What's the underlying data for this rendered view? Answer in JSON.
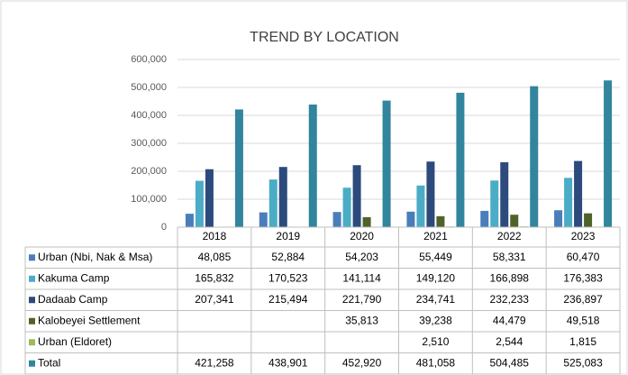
{
  "chart_data": {
    "type": "bar",
    "title": "TREND BY  LOCATION",
    "categories": [
      "2018",
      "2019",
      "2020",
      "2021",
      "2022",
      "2023"
    ],
    "ylim": [
      0,
      600000
    ],
    "yticks": [
      0,
      {
        "value": 100000,
        "label": "100,000"
      },
      {
        "value": 200000,
        "label": "200,000"
      },
      {
        "value": 300000,
        "label": "300,000"
      },
      {
        "value": 400000,
        "label": "400,000"
      },
      {
        "value": 500000,
        "label": "500,000"
      },
      {
        "value": 600000,
        "label": "600,000"
      }
    ],
    "grid": true,
    "series": [
      {
        "name": "Urban (Nbi, Nak & Msa)",
        "color": "#4a7ebb",
        "values": [
          48085,
          52884,
          54203,
          55449,
          58331,
          60470
        ],
        "value_labels": [
          "48,085",
          "52,884",
          "54,203",
          "55,449",
          "58,331",
          "60,470"
        ]
      },
      {
        "name": "Kakuma Camp",
        "color": "#4bacc6",
        "values": [
          165832,
          170523,
          141114,
          149120,
          166898,
          176383
        ],
        "value_labels": [
          "165,832",
          "170,523",
          "141,114",
          "149,120",
          "166,898",
          "176,383"
        ]
      },
      {
        "name": "Dadaab Camp",
        "color": "#2c4a7c",
        "values": [
          207341,
          215494,
          221790,
          234741,
          232233,
          236897
        ],
        "value_labels": [
          "207,341",
          "215,494",
          "221,790",
          "234,741",
          "232,233",
          "236,897"
        ]
      },
      {
        "name": "Kalobeyei Settlement",
        "color": "#4f6228",
        "values": [
          null,
          null,
          35813,
          39238,
          44479,
          49518
        ],
        "value_labels": [
          null,
          null,
          "35,813",
          "39,238",
          "44,479",
          "49,518"
        ]
      },
      {
        "name": "Urban (Eldoret)",
        "color": "#9bbb59",
        "values": [
          null,
          null,
          null,
          2510,
          2544,
          1815
        ],
        "value_labels": [
          null,
          null,
          null,
          "2,510",
          "2,544",
          "1,815"
        ]
      },
      {
        "name": "Total",
        "color": "#31859c",
        "values": [
          421258,
          438901,
          452920,
          481058,
          504485,
          525083
        ],
        "value_labels": [
          "421,258",
          "438,901",
          "452,920",
          "481,058",
          "504,485",
          "525,083"
        ]
      }
    ]
  }
}
